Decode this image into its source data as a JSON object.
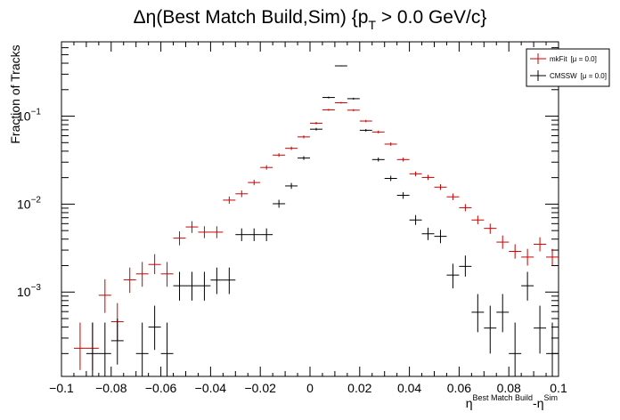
{
  "chart_data": {
    "type": "scatter",
    "title": "Δη(Best Match Build,Sim) {p",
    "title_sub": "T",
    "title_tail": " > 0.0 GeV/c}",
    "ylabel": "Fraction of Tracks",
    "xlabel_base": "η",
    "xlabel_sup1": "Best Match Build",
    "xlabel_mid": "-η",
    "xlabel_sup2": "Sim",
    "xlim": [
      -0.1,
      0.1
    ],
    "ylim": [
      0.00011,
      0.7
    ],
    "yscale": "log",
    "bin_width": 0.005,
    "x_ticks": [
      -0.1,
      -0.08,
      -0.06,
      -0.04,
      -0.02,
      0,
      0.02,
      0.04,
      0.06,
      0.08,
      0.1
    ],
    "x_tick_labels": [
      "−0.1",
      "−0.08",
      "−0.06",
      "−0.04",
      "−0.02",
      "0",
      "0.02",
      "0.04",
      "0.06",
      "0.08",
      "0.1"
    ],
    "y_ticks": [
      0.001,
      0.01,
      0.1
    ],
    "y_tick_base": "10",
    "y_tick_exps": [
      "−3",
      "−2",
      "−1"
    ],
    "legend_position": "top-right",
    "series": [
      {
        "name": "mkFit",
        "name_detail": "[μ = 0.0]",
        "color": "#cc0000",
        "points": [
          {
            "x": -0.0925,
            "y": 0.00023,
            "lo": 0.00013,
            "hi": 0.00045
          },
          {
            "x": -0.0875,
            "y": 0.00023,
            "lo": 0.00013,
            "hi": 0.00045
          },
          {
            "x": -0.0825,
            "y": 0.00092,
            "lo": 0.00058,
            "hi": 0.0014
          },
          {
            "x": -0.0775,
            "y": 0.00046,
            "lo": 0.00028,
            "hi": 0.00075
          },
          {
            "x": -0.0725,
            "y": 0.00138,
            "lo": 0.00098,
            "hi": 0.0019
          },
          {
            "x": -0.0675,
            "y": 0.00161,
            "lo": 0.00115,
            "hi": 0.0022
          },
          {
            "x": -0.0625,
            "y": 0.00206,
            "lo": 0.0016,
            "hi": 0.0027
          },
          {
            "x": -0.0575,
            "y": 0.00161,
            "lo": 0.00115,
            "hi": 0.0022
          },
          {
            "x": -0.0525,
            "y": 0.0041,
            "lo": 0.0034,
            "hi": 0.0049
          },
          {
            "x": -0.0475,
            "y": 0.0055,
            "lo": 0.0047,
            "hi": 0.0064
          },
          {
            "x": -0.0425,
            "y": 0.0048,
            "lo": 0.0041,
            "hi": 0.0056
          },
          {
            "x": -0.0375,
            "y": 0.0048,
            "lo": 0.0041,
            "hi": 0.0056
          },
          {
            "x": -0.0325,
            "y": 0.0111,
            "lo": 0.0101,
            "hi": 0.0122
          },
          {
            "x": -0.0275,
            "y": 0.0131,
            "lo": 0.012,
            "hi": 0.0143
          },
          {
            "x": -0.0225,
            "y": 0.0176,
            "lo": 0.0164,
            "hi": 0.0189
          },
          {
            "x": -0.0175,
            "y": 0.0261,
            "lo": 0.0246,
            "hi": 0.0277
          },
          {
            "x": -0.0125,
            "y": 0.0361,
            "lo": 0.0344,
            "hi": 0.0379
          },
          {
            "x": -0.0075,
            "y": 0.0431,
            "lo": 0.0412,
            "hi": 0.0451
          },
          {
            "x": -0.0025,
            "y": 0.0581,
            "lo": 0.0559,
            "hi": 0.0604
          },
          {
            "x": 0.0025,
            "y": 0.0832,
            "lo": 0.0806,
            "hi": 0.0859
          },
          {
            "x": 0.0075,
            "y": 0.118,
            "lo": 0.115,
            "hi": 0.121
          },
          {
            "x": 0.0125,
            "y": 0.142,
            "lo": 0.139,
            "hi": 0.145
          },
          {
            "x": 0.0175,
            "y": 0.117,
            "lo": 0.114,
            "hi": 0.12
          },
          {
            "x": 0.0225,
            "y": 0.088,
            "lo": 0.0853,
            "hi": 0.0907
          },
          {
            "x": 0.0275,
            "y": 0.0661,
            "lo": 0.0638,
            "hi": 0.0685
          },
          {
            "x": 0.0325,
            "y": 0.0481,
            "lo": 0.0461,
            "hi": 0.0502
          },
          {
            "x": 0.0375,
            "y": 0.0321,
            "lo": 0.0305,
            "hi": 0.0338
          },
          {
            "x": 0.0425,
            "y": 0.0221,
            "lo": 0.0207,
            "hi": 0.0235
          },
          {
            "x": 0.0475,
            "y": 0.0201,
            "lo": 0.0188,
            "hi": 0.0215
          },
          {
            "x": 0.0525,
            "y": 0.0156,
            "lo": 0.0145,
            "hi": 0.0168
          },
          {
            "x": 0.0575,
            "y": 0.0121,
            "lo": 0.0111,
            "hi": 0.0132
          },
          {
            "x": 0.0625,
            "y": 0.0091,
            "lo": 0.0083,
            "hi": 0.01
          },
          {
            "x": 0.0675,
            "y": 0.0066,
            "lo": 0.0059,
            "hi": 0.0074
          },
          {
            "x": 0.0725,
            "y": 0.0053,
            "lo": 0.0046,
            "hi": 0.006
          },
          {
            "x": 0.0775,
            "y": 0.0037,
            "lo": 0.0031,
            "hi": 0.0044
          },
          {
            "x": 0.0825,
            "y": 0.0029,
            "lo": 0.0024,
            "hi": 0.0035
          },
          {
            "x": 0.0875,
            "y": 0.0025,
            "lo": 0.002,
            "hi": 0.0031
          },
          {
            "x": 0.0925,
            "y": 0.0035,
            "lo": 0.0029,
            "hi": 0.0042
          },
          {
            "x": 0.0975,
            "y": 0.0025,
            "lo": 0.002,
            "hi": 0.0031
          }
        ]
      },
      {
        "name": "CMSSW",
        "name_detail": "[μ = 0.0]",
        "color": "#000000",
        "points": [
          {
            "x": -0.0875,
            "y": 0.0002,
            "lo": 0.0001,
            "hi": 0.00045
          },
          {
            "x": -0.0825,
            "y": 0.0002,
            "lo": 0.0001,
            "hi": 0.00045
          },
          {
            "x": -0.0775,
            "y": 0.00028,
            "lo": 0.00015,
            "hi": 0.0005
          },
          {
            "x": -0.0675,
            "y": 0.0002,
            "lo": 0.0001,
            "hi": 0.00045
          },
          {
            "x": -0.0625,
            "y": 0.0004,
            "lo": 0.00022,
            "hi": 0.0007
          },
          {
            "x": -0.0575,
            "y": 0.0002,
            "lo": 0.0001,
            "hi": 0.00045
          },
          {
            "x": -0.0525,
            "y": 0.00118,
            "lo": 0.0008,
            "hi": 0.0017
          },
          {
            "x": -0.0475,
            "y": 0.00118,
            "lo": 0.0008,
            "hi": 0.0017
          },
          {
            "x": -0.0425,
            "y": 0.00118,
            "lo": 0.0008,
            "hi": 0.0017
          },
          {
            "x": -0.0375,
            "y": 0.00137,
            "lo": 0.00095,
            "hi": 0.0019
          },
          {
            "x": -0.0325,
            "y": 0.00137,
            "lo": 0.00095,
            "hi": 0.0019
          },
          {
            "x": -0.0275,
            "y": 0.0045,
            "lo": 0.0038,
            "hi": 0.0053
          },
          {
            "x": -0.0225,
            "y": 0.0045,
            "lo": 0.0038,
            "hi": 0.0053
          },
          {
            "x": -0.0175,
            "y": 0.0045,
            "lo": 0.0038,
            "hi": 0.0053
          },
          {
            "x": -0.0125,
            "y": 0.0101,
            "lo": 0.0091,
            "hi": 0.0112
          },
          {
            "x": -0.0075,
            "y": 0.0161,
            "lo": 0.0149,
            "hi": 0.0174
          },
          {
            "x": -0.0025,
            "y": 0.0334,
            "lo": 0.0318,
            "hi": 0.0351
          },
          {
            "x": 0.0025,
            "y": 0.0711,
            "lo": 0.0687,
            "hi": 0.0736
          },
          {
            "x": 0.0075,
            "y": 0.163,
            "lo": 0.159,
            "hi": 0.167
          },
          {
            "x": 0.0125,
            "y": 0.373,
            "lo": 0.368,
            "hi": 0.378
          },
          {
            "x": 0.0175,
            "y": 0.158,
            "lo": 0.154,
            "hi": 0.162
          },
          {
            "x": 0.0225,
            "y": 0.0691,
            "lo": 0.0668,
            "hi": 0.0715
          },
          {
            "x": 0.0275,
            "y": 0.0321,
            "lo": 0.0305,
            "hi": 0.0338
          },
          {
            "x": 0.0325,
            "y": 0.0196,
            "lo": 0.0183,
            "hi": 0.021
          },
          {
            "x": 0.0375,
            "y": 0.0126,
            "lo": 0.0115,
            "hi": 0.0137
          },
          {
            "x": 0.0425,
            "y": 0.0066,
            "lo": 0.0058,
            "hi": 0.0075
          },
          {
            "x": 0.0475,
            "y": 0.0046,
            "lo": 0.0039,
            "hi": 0.0054
          },
          {
            "x": 0.0525,
            "y": 0.0043,
            "lo": 0.0036,
            "hi": 0.0051
          },
          {
            "x": 0.0575,
            "y": 0.00156,
            "lo": 0.0011,
            "hi": 0.0021
          },
          {
            "x": 0.0625,
            "y": 0.00196,
            "lo": 0.0015,
            "hi": 0.0026
          },
          {
            "x": 0.0675,
            "y": 0.00059,
            "lo": 0.00035,
            "hi": 0.00095
          },
          {
            "x": 0.0725,
            "y": 0.00039,
            "lo": 0.0002,
            "hi": 0.0007
          },
          {
            "x": 0.0775,
            "y": 0.00059,
            "lo": 0.00035,
            "hi": 0.00095
          },
          {
            "x": 0.0825,
            "y": 0.0002,
            "lo": 0.0001,
            "hi": 0.00045
          },
          {
            "x": 0.0875,
            "y": 0.00118,
            "lo": 0.0008,
            "hi": 0.0017
          },
          {
            "x": 0.0925,
            "y": 0.00039,
            "lo": 0.0002,
            "hi": 0.0007
          },
          {
            "x": 0.0975,
            "y": 0.0002,
            "lo": 0.0001,
            "hi": 0.00045
          }
        ]
      }
    ]
  }
}
